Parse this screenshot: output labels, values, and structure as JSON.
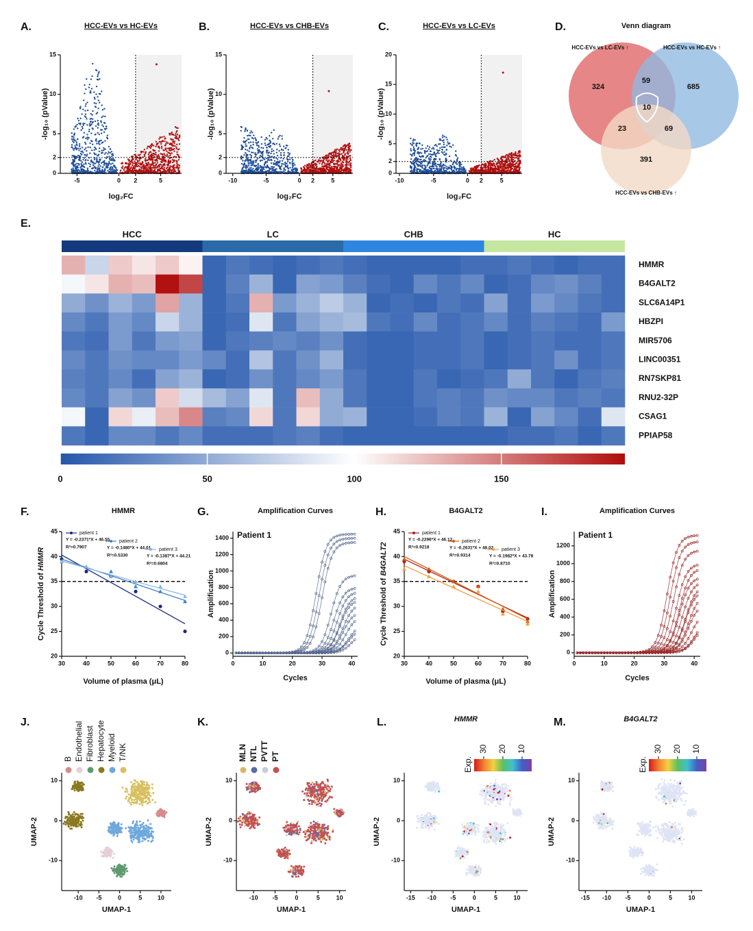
{
  "chart_data": [
    {
      "type": "volcano",
      "label": "A.",
      "title": "HCC-EVs vs HC-EVs",
      "xlabel": "log₂FC",
      "ylabel": "-log₁₀ (pValue)",
      "xlim": [
        -7,
        7.5
      ],
      "ylim": [
        0,
        15
      ],
      "xticks": [
        -5,
        0,
        2,
        5
      ],
      "yticks": [
        0,
        2,
        5,
        10,
        15
      ],
      "fc_cutoff": 2,
      "p_cutoff": 2,
      "down_color": "#1f4e99",
      "up_color": "#b01010",
      "highlight": {
        "x": 4.5,
        "y": 13.8
      }
    },
    {
      "type": "volcano",
      "label": "B.",
      "title": "HCC-EVs vs CHB-EVs",
      "xlabel": "log₂FC",
      "ylabel": "-log₁₀ (pValue)",
      "xlim": [
        -11,
        8
      ],
      "ylim": [
        0,
        15
      ],
      "xticks": [
        -10,
        -5,
        0,
        2,
        5
      ],
      "yticks": [
        0,
        2,
        5,
        10,
        15
      ],
      "fc_cutoff": 2,
      "p_cutoff": 2,
      "down_color": "#1f4e99",
      "up_color": "#b01010",
      "highlight": {
        "x": 4.4,
        "y": 10.4
      }
    },
    {
      "type": "volcano",
      "label": "C.",
      "title": "HCC-EVs vs LC-EVs",
      "xlabel": "log₂FC",
      "ylabel": "-log₁₀ (pValue)",
      "xlim": [
        -10.5,
        8
      ],
      "ylim": [
        0,
        20
      ],
      "xticks": [
        -10,
        -5,
        0,
        2,
        5
      ],
      "yticks": [
        0,
        2,
        5,
        10,
        15,
        20
      ],
      "fc_cutoff": 2,
      "p_cutoff": 2,
      "down_color": "#1f4e99",
      "up_color": "#b01010",
      "highlight": {
        "x": 5.2,
        "y": 17
      }
    },
    {
      "type": "venn",
      "label": "D.",
      "title": "Venn diagram",
      "sets": [
        {
          "name": "HCC-EVs vs LC-EVs ↑",
          "color": "#e06464",
          "text_color": "#cc2222"
        },
        {
          "name": "HCC-EVs vs HC-EVs ↑",
          "color": "#8fb9e2",
          "text_color": "#2a7ab8"
        },
        {
          "name": "HCC-EVs vs CHB-EVs ↑",
          "color": "#f2dac6",
          "text_color": "#8b4b3b"
        }
      ],
      "counts": [
        324,
        59,
        685,
        10,
        23,
        69,
        391
      ]
    },
    {
      "type": "heatmap",
      "label": "E.",
      "groups": [
        "HCC",
        "LC",
        "CHB",
        "HC"
      ],
      "group_colors": [
        "#143a7d",
        "#2a6aa8",
        "#2f86e0",
        "#c5e6a0"
      ],
      "rows": [
        "HMMR",
        "B4GALT2",
        "SLC6A14P1",
        "HBZPI",
        "MIR5706",
        "LINC00351",
        "RN7SKP81",
        "RNU2-32P",
        "CSAG1",
        "PPIAP58"
      ],
      "values": [
        [
          130,
          75,
          120,
          110,
          120,
          105,
          10,
          20,
          15,
          10,
          15,
          20,
          15,
          10,
          10,
          10,
          10,
          15,
          15,
          20,
          15,
          10,
          15,
          15
        ],
        [
          95,
          110,
          130,
          125,
          190,
          170,
          10,
          25,
          55,
          10,
          45,
          40,
          25,
          15,
          10,
          30,
          20,
          30,
          10,
          15,
          30,
          35,
          25,
          15
        ],
        [
          50,
          35,
          55,
          40,
          135,
          55,
          10,
          20,
          130,
          40,
          55,
          70,
          55,
          10,
          15,
          10,
          20,
          15,
          45,
          15,
          40,
          30,
          20,
          15
        ],
        [
          30,
          20,
          40,
          30,
          75,
          55,
          10,
          15,
          85,
          20,
          45,
          55,
          60,
          20,
          15,
          30,
          15,
          20,
          30,
          15,
          25,
          20,
          15,
          40
        ],
        [
          20,
          15,
          40,
          20,
          40,
          45,
          10,
          20,
          25,
          30,
          25,
          35,
          15,
          10,
          10,
          15,
          15,
          20,
          10,
          15,
          20,
          15,
          15,
          20
        ],
        [
          30,
          20,
          35,
          30,
          30,
          40,
          30,
          15,
          65,
          20,
          35,
          55,
          15,
          10,
          10,
          15,
          15,
          20,
          10,
          15,
          20,
          35,
          15,
          20
        ],
        [
          25,
          20,
          30,
          15,
          45,
          55,
          10,
          15,
          35,
          20,
          30,
          40,
          20,
          10,
          10,
          20,
          10,
          15,
          20,
          50,
          20,
          10,
          20,
          25
        ],
        [
          30,
          20,
          45,
          35,
          120,
          80,
          60,
          45,
          85,
          20,
          125,
          50,
          20,
          10,
          10,
          20,
          25,
          20,
          35,
          30,
          30,
          20,
          25,
          20
        ],
        [
          95,
          10,
          115,
          90,
          125,
          145,
          25,
          30,
          115,
          20,
          115,
          50,
          55,
          10,
          10,
          15,
          25,
          20,
          55,
          10,
          45,
          30,
          15,
          85
        ],
        [
          20,
          10,
          30,
          30,
          20,
          30,
          15,
          15,
          15,
          20,
          25,
          15,
          10,
          10,
          10,
          10,
          10,
          10,
          10,
          15,
          15,
          20,
          10,
          20
        ]
      ],
      "color_stops": [
        {
          "value": 0,
          "color": "#2356ab"
        },
        {
          "value": 100,
          "color": "#ffffff"
        },
        {
          "value": 192,
          "color": "#b00c0c"
        }
      ],
      "cticks": [
        0,
        50,
        100,
        150
      ]
    },
    {
      "type": "regression",
      "label": "F.",
      "title": "HMMR",
      "xlabel": "Volume of plasma (μL)",
      "ylabel": "Cycle Threshold of ",
      "ylabel_gene": "HMMR",
      "x": [
        30,
        40,
        50,
        60,
        70,
        80
      ],
      "xlim": [
        30,
        80
      ],
      "ylim": [
        20,
        45
      ],
      "xticks": [
        30,
        40,
        50,
        60,
        70,
        80
      ],
      "yticks": [
        20,
        25,
        30,
        35,
        40,
        45
      ],
      "cutoff": 35,
      "series": [
        {
          "name": "patient 1",
          "color": "#1a2a80",
          "values": [
            39.5,
            37,
            36,
            33,
            30,
            25
          ],
          "equation": "Y = -0.2371*X + 46.55",
          "r2": "R²=0.7907"
        },
        {
          "name": "patient 2",
          "color": "#3f7fc4",
          "values": [
            39,
            38,
            37,
            34,
            33,
            31
          ],
          "equation": "Y = -0.1480*X + 44.01",
          "r2": "R²=0.5330"
        },
        {
          "name": "patient 3",
          "color": "#8ab4e0",
          "values": [
            39,
            38,
            36,
            35,
            34,
            32
          ],
          "equation": "Y = -0.1387*X + 44.21",
          "r2": "R²=0.6804"
        }
      ]
    },
    {
      "type": "amplification",
      "label": "G.",
      "title": "Amplification Curves",
      "annotation": "Patient 1",
      "xlabel": "Cycles",
      "ylabel": "Amplification",
      "xlim": [
        0,
        42
      ],
      "ylim": [
        -40,
        1480
      ],
      "xticks": [
        0,
        10,
        20,
        30,
        40
      ],
      "yticks": [
        0,
        200,
        400,
        600,
        800,
        1000,
        1200,
        1400
      ],
      "color": "#56688f",
      "midpoints": [
        28,
        29,
        30,
        33,
        34,
        35,
        36,
        36,
        37,
        37,
        38,
        39,
        39,
        40
      ],
      "plateaus": [
        1450,
        1400,
        1350,
        950,
        800,
        750,
        700,
        650,
        600,
        500,
        450,
        350,
        300,
        250
      ]
    },
    {
      "type": "regression",
      "label": "H.",
      "title": "B4GALT2",
      "xlabel": "Volume of plasma (μL)",
      "ylabel": "Cycle Threshold of ",
      "ylabel_gene": "B4GALT2",
      "x": [
        30,
        40,
        50,
        60,
        70,
        80
      ],
      "xlim": [
        30,
        80
      ],
      "ylim": [
        20,
        45
      ],
      "xticks": [
        30,
        40,
        50,
        60,
        70,
        80
      ],
      "yticks": [
        20,
        25,
        30,
        35,
        40,
        45
      ],
      "cutoff": 35,
      "series": [
        {
          "name": "patient 1",
          "color": "#b01c1c",
          "values": [
            39,
            37,
            35,
            34,
            29,
            27.5
          ],
          "equation": "Y = -0.2296*X + 46.12",
          "r2": "R²=0.9218"
        },
        {
          "name": "patient 2",
          "color": "#d05a10",
          "values": [
            39.5,
            37.5,
            35,
            34,
            29.5,
            27
          ],
          "equation": "Y = -0.2631*X + 48.02",
          "r2": "R²=0.9314"
        },
        {
          "name": "patient 3",
          "color": "#f0a040",
          "values": [
            37.5,
            36,
            34,
            33,
            28.5,
            26.5
          ],
          "equation": "Y = -0.1982*X + 43.78",
          "r2": "R²=0.8710"
        }
      ]
    },
    {
      "type": "amplification",
      "label": "I.",
      "title": "Amplification Curves",
      "annotation": "Patient 1",
      "xlabel": "Cycles",
      "ylabel": "Amplification",
      "xlim": [
        0,
        42
      ],
      "ylim": [
        -40,
        1360
      ],
      "xticks": [
        0,
        10,
        20,
        30,
        40
      ],
      "yticks": [
        0,
        200,
        400,
        600,
        800,
        1000,
        1200
      ],
      "color": "#9a2a2a",
      "midpoints": [
        31,
        32,
        33,
        34,
        35,
        35,
        36,
        37,
        37,
        38,
        38,
        39,
        40,
        40
      ],
      "plateaus": [
        1320,
        1250,
        1150,
        1000,
        950,
        850,
        800,
        750,
        700,
        650,
        550,
        450,
        350,
        300
      ]
    },
    {
      "type": "umap",
      "label": "J.",
      "xlabel": "UMAP-1",
      "ylabel": "UMAP-2",
      "xlim": [
        -14,
        12.5
      ],
      "ylim": [
        -17.5,
        12
      ],
      "xticks": [
        -10,
        -5,
        0,
        5,
        10
      ],
      "yticks": [
        10,
        0,
        -10
      ],
      "categories": [
        "B",
        "Endothelial",
        "Fibroblast",
        "Hepatocyte",
        "Myeloid",
        "T/NK"
      ],
      "colors": [
        "#d98a8a",
        "#e6cfd6",
        "#5f9a6f",
        "#8b7a20",
        "#6fa8dc",
        "#d8c060"
      ],
      "clusters": [
        {
          "x": -10,
          "y": 8.5,
          "r": 2,
          "category": 3
        },
        {
          "x": -11,
          "y": 0,
          "r": 3,
          "category": 3
        },
        {
          "x": 5,
          "y": 7,
          "r": 4.5,
          "category": 5
        },
        {
          "x": 5,
          "y": -3,
          "r": 4,
          "category": 4
        },
        {
          "x": -3,
          "y": -8,
          "r": 2,
          "category": 1
        },
        {
          "x": 0,
          "y": -12.5,
          "r": 2.2,
          "category": 2
        },
        {
          "x": 10,
          "y": 2,
          "r": 1.5,
          "category": 0
        },
        {
          "x": -1,
          "y": -2,
          "r": 2.5,
          "category": 4
        }
      ]
    },
    {
      "type": "umap",
      "label": "K.",
      "xlabel": "UMAP-1",
      "ylabel": "UMAP-2",
      "xlim": [
        -14,
        11.5
      ],
      "ylim": [
        -17.5,
        12
      ],
      "xticks": [
        -10,
        -5,
        0,
        5,
        10
      ],
      "yticks": [
        10,
        0,
        -10
      ],
      "categories": [
        "MLN",
        "NTL",
        "PVTT",
        "PT"
      ],
      "colors": [
        "#d8b860",
        "#5a6aa8",
        "#c8cce0",
        "#c85050"
      ]
    },
    {
      "type": "umap_expr",
      "label": "L.",
      "title": "HMMR",
      "legend_title": "Exp.",
      "xlabel": "UMAP-1",
      "ylabel": "UMAP-2",
      "xlim": [
        -16.5,
        12.5
      ],
      "ylim": [
        -17.5,
        12
      ],
      "xticks": [
        -15,
        -10,
        -5,
        0,
        5,
        10
      ],
      "yticks": [
        10,
        0,
        -10
      ],
      "clim": [
        35,
        5
      ],
      "cticks": [
        30,
        20,
        10
      ]
    },
    {
      "type": "umap_expr",
      "label": "M.",
      "title": "B4GALT2",
      "legend_title": "Exp.",
      "xlabel": "UMAP-1",
      "ylabel": "UMAP-2",
      "xlim": [
        -16.5,
        12.5
      ],
      "ylim": [
        -17.5,
        12
      ],
      "xticks": [
        -15,
        -10,
        -5,
        0,
        5,
        10
      ],
      "yticks": [
        10,
        0,
        -10
      ],
      "clim": [
        35,
        5
      ],
      "cticks": [
        30,
        20,
        10
      ]
    }
  ]
}
